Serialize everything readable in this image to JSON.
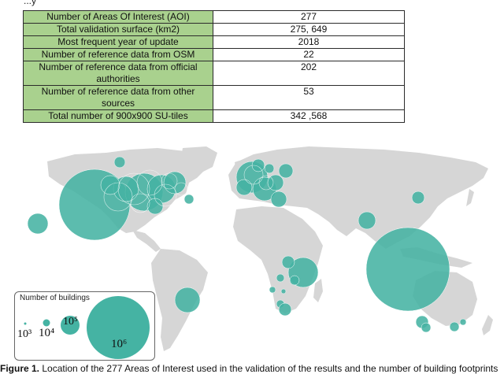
{
  "top_fragment": "...y",
  "table": [
    {
      "label": "Number of Areas Of Interest (AOI)",
      "value": "277"
    },
    {
      "label": "Total validation surface (km2)",
      "value": "275, 649"
    },
    {
      "label": "Most frequent year of update",
      "value": "2018"
    },
    {
      "label": "Number of reference data from OSM",
      "value": "22"
    },
    {
      "label": "Number of reference data from official authorities",
      "value": "202"
    },
    {
      "label": "Number of reference data from other sources",
      "value": "53"
    },
    {
      "label": "Total number of 900x900 SU-tiles",
      "value": "342 ,568"
    }
  ],
  "legend": {
    "title": "Number of buildings",
    "labels": [
      "10³",
      "10⁴",
      "10⁵",
      "10⁶"
    ]
  },
  "colors": {
    "bubble": "#45b3a3",
    "land": "#d6d6d6",
    "table_header": "#a9d18e"
  },
  "caption": {
    "prefix": "Figure 1.",
    "text": " Location of the 277 Areas of Interest used in the validation of the results and the number of building footprints"
  }
}
